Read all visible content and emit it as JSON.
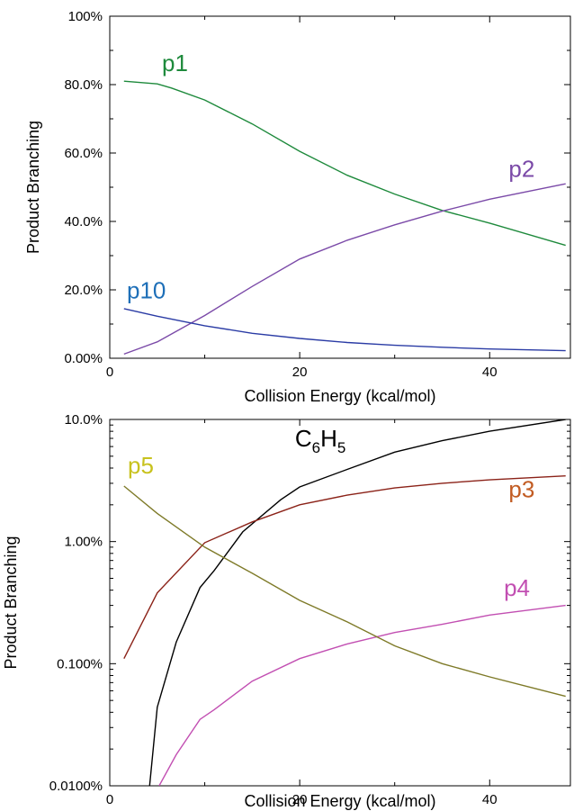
{
  "chart_data": [
    {
      "type": "line",
      "xlabel": "Collision Energy (kcal/mol)",
      "ylabel": "Product Branching",
      "xlim": [
        0,
        48.5
      ],
      "ylim": [
        0,
        100
      ],
      "yscale": "linear",
      "xticks": [
        {
          "value": 0,
          "label": "0"
        },
        {
          "value": 20,
          "label": "20"
        },
        {
          "value": 40,
          "label": "40"
        }
      ],
      "yticks": [
        {
          "value": 0,
          "label": "0.00%"
        },
        {
          "value": 20,
          "label": "20.0%"
        },
        {
          "value": 40,
          "label": "40.0%"
        },
        {
          "value": 60,
          "label": "60.0%"
        },
        {
          "value": 80,
          "label": "80.0%"
        },
        {
          "value": 100,
          "label": "100%"
        }
      ],
      "series": [
        {
          "name": "p1",
          "color": "#1e8a3c",
          "label_x": 5.5,
          "label_y": 84,
          "x": [
            1.5,
            5,
            6.5,
            10,
            15,
            20,
            25,
            30,
            35,
            40,
            48
          ],
          "y": [
            81,
            80.2,
            79,
            75.5,
            68.5,
            60.5,
            53.5,
            48,
            43.2,
            39.5,
            33
          ]
        },
        {
          "name": "p2",
          "color": "#7b4aa8",
          "label_x": 42,
          "label_y": 53,
          "x": [
            1.5,
            5,
            10,
            15,
            20,
            25,
            30,
            35,
            40,
            48
          ],
          "y": [
            1.2,
            4.8,
            12.5,
            21,
            29,
            34.5,
            39,
            43,
            46.5,
            51
          ]
        },
        {
          "name": "p10",
          "color": "#2b3ca5",
          "text_color": "#1e6fb8",
          "label_x": 1.8,
          "label_y": 17.5,
          "x": [
            1.5,
            5,
            10,
            15,
            20,
            25,
            30,
            35,
            40,
            48
          ],
          "y": [
            14.5,
            12.3,
            9.5,
            7.3,
            5.8,
            4.6,
            3.8,
            3.2,
            2.7,
            2.2
          ]
        }
      ]
    },
    {
      "type": "line",
      "xlabel": "Collision Energy (kcal/mol)",
      "ylabel": "Product Branching",
      "xlim": [
        0,
        48.5
      ],
      "ylim": [
        0.01,
        10
      ],
      "yscale": "log",
      "xticks": [
        {
          "value": 0,
          "label": "0"
        },
        {
          "value": 20,
          "label": "20"
        },
        {
          "value": 40,
          "label": "40"
        }
      ],
      "yticks": [
        {
          "value": 0.01,
          "label": "0.0100%"
        },
        {
          "value": 0.1,
          "label": "0.100%"
        },
        {
          "value": 1,
          "label": "1.00%"
        },
        {
          "value": 10,
          "label": "10.0%"
        }
      ],
      "series": [
        {
          "name": "C6H5",
          "label_main": "C",
          "label_sub1": "6",
          "label_mid": "H",
          "label_sub2": "5",
          "color": "#000000",
          "label_x": 19.5,
          "label_y": 6.0,
          "x": [
            4.2,
            5,
            7,
            9.5,
            11,
            14,
            18,
            20,
            25,
            30,
            35,
            40,
            48
          ],
          "y": [
            0.01,
            0.044,
            0.15,
            0.42,
            0.58,
            1.2,
            2.2,
            2.8,
            3.9,
            5.4,
            6.7,
            8.0,
            10
          ]
        },
        {
          "name": "p3",
          "color": "#8b2218",
          "text_color": "#c25c23",
          "label_x": 42,
          "label_y": 2.3,
          "x": [
            1.5,
            5,
            10,
            15,
            20,
            25,
            30,
            35,
            40,
            48
          ],
          "y": [
            0.11,
            0.38,
            0.98,
            1.45,
            2.0,
            2.4,
            2.75,
            3.0,
            3.2,
            3.45
          ]
        },
        {
          "name": "p4",
          "color": "#c24fb2",
          "label_x": 41.5,
          "label_y": 0.36,
          "x": [
            5.2,
            7,
            9.5,
            11,
            15,
            20,
            25,
            30,
            35,
            40,
            48
          ],
          "y": [
            0.01,
            0.018,
            0.035,
            0.042,
            0.072,
            0.11,
            0.145,
            0.18,
            0.21,
            0.25,
            0.3
          ]
        },
        {
          "name": "p5",
          "color": "#7e7a28",
          "text_color": "#c8c21e",
          "label_x": 1.9,
          "label_y": 3.6,
          "x": [
            1.5,
            5,
            10,
            15,
            20,
            25,
            30,
            35,
            40,
            48
          ],
          "y": [
            2.85,
            1.7,
            0.9,
            0.55,
            0.33,
            0.22,
            0.14,
            0.1,
            0.078,
            0.054
          ]
        }
      ]
    }
  ]
}
